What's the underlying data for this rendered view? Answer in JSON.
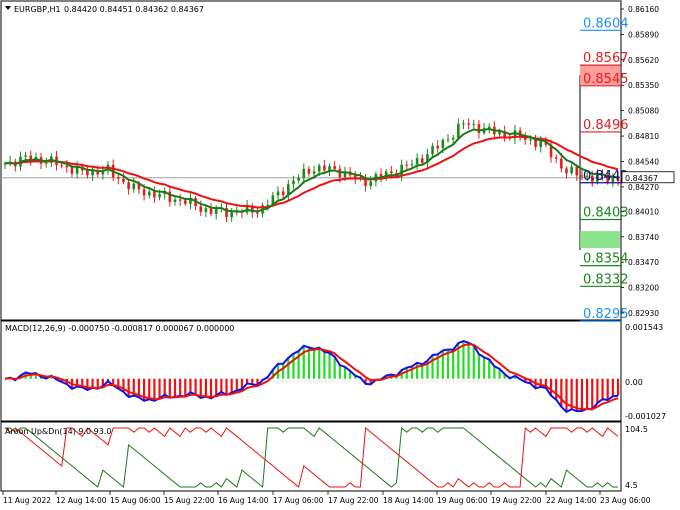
{
  "header": {
    "symbol": "EURGBP,H1",
    "ohlc": "0.84420 0.84451 0.84362 0.84367"
  },
  "price_axis": {
    "ticks": [
      "0.86160",
      "0.85890",
      "0.85620",
      "0.85350",
      "0.85080",
      "0.84810",
      "0.84540",
      "0.84270",
      "0.84010",
      "0.83740",
      "0.83470",
      "0.83200",
      "0.82930"
    ],
    "tick_values": [
      0.8616,
      0.8589,
      0.8562,
      0.8535,
      0.8508,
      0.8481,
      0.8454,
      0.8427,
      0.8401,
      0.8374,
      0.8347,
      0.832,
      0.8293
    ],
    "current_price": "0.84367",
    "current_value": 0.84367
  },
  "levels": [
    {
      "label": "0.8604",
      "value": 0.8604,
      "color": "#1e90ff"
    },
    {
      "label": "0.8567",
      "value": 0.8567,
      "color": "#e02020"
    },
    {
      "label": "0.8545",
      "value": 0.8545,
      "color": "#e02020"
    },
    {
      "label": "0.8496",
      "value": 0.8496,
      "color": "#e02020"
    },
    {
      "label": "0.8442",
      "value": 0.8442,
      "color": "#101080"
    },
    {
      "label": "0.8403",
      "value": 0.8403,
      "color": "#1a8a1a"
    },
    {
      "label": "0.8354",
      "value": 0.8354,
      "color": "#1a8a1a"
    },
    {
      "label": "0.8332",
      "value": 0.8332,
      "color": "#1a8a1a"
    },
    {
      "label": "0.8295",
      "value": 0.8295,
      "color": "#1e90ff"
    }
  ],
  "macd": {
    "label": "MACD(12,26,9) -0.000750 -0.000817 0.000067 0.000000",
    "ticks": [
      "0.001543",
      "0.00",
      "-0.001027"
    ]
  },
  "aroon": {
    "label": "Aroon Up&Dn(14) 9.0 93.0",
    "ticks": [
      "104.5",
      "4.5"
    ]
  },
  "time_axis": [
    "11 Aug 2022",
    "12 Aug 14:00",
    "15 Aug 06:00",
    "15 Aug 22:00",
    "16 Aug 14:00",
    "17 Aug 06:00",
    "17 Aug 22:00",
    "18 Aug 14:00",
    "19 Aug 06:00",
    "19 Aug 22:00",
    "22 Aug 14:00",
    "23 Aug 06:00"
  ],
  "colors": {
    "bull": "#1a8a1a",
    "bear": "#e02020",
    "ma_fast": "#1a7a1a",
    "ma_slow": "#ee1111",
    "macd_line": "#1010ee",
    "signal_line": "#ee1111",
    "hist_pos": "#22dd22",
    "hist_neg": "#ee1111",
    "aroon_up": "#1a7a1a",
    "aroon_down": "#ee1111"
  },
  "chart_data": {
    "type": "line",
    "price_key": [
      0.8452,
      0.8458,
      0.8452,
      0.8442,
      0.8445,
      0.8425,
      0.8418,
      0.8412,
      0.8401,
      0.84,
      0.8403,
      0.8427,
      0.8447,
      0.8445,
      0.8432,
      0.8441,
      0.8452,
      0.8471,
      0.8495,
      0.8486,
      0.8481,
      0.8473,
      0.8443,
      0.8437,
      0.8436
    ]
  }
}
